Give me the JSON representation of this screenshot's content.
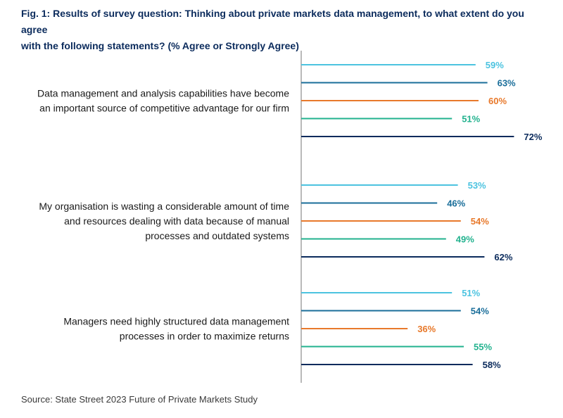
{
  "title_lines": [
    "Fig. 1: Results of survey question: Thinking about private markets data management, to what extent do you agree",
    "with the following statements? (% Agree or Strongly Agree)"
  ],
  "source": "Source: State Street 2023 Future of Private Markets Study",
  "colors": [
    "#4cc3e0",
    "#1a6e9a",
    "#e8792b",
    "#22b28e",
    "#0b2b5c"
  ],
  "chart_data": {
    "type": "bar",
    "orientation": "horizontal",
    "title": "Fig. 1: Results of survey question: Thinking about private markets data management, to what extent do you agree with the following statements? (% Agree or Strongly Agree)",
    "unit": "%",
    "xlim": [
      0,
      100
    ],
    "grid": false,
    "legend": "none",
    "categories": [
      {
        "label_lines": [
          "Data management and analysis capabilities have become",
          "an important source of competitive advantage for our firm"
        ],
        "values": [
          59,
          63,
          60,
          51,
          72
        ]
      },
      {
        "label_lines": [
          "My organisation is wasting a considerable amount of time",
          "and resources dealing with data because of manual",
          "processes and outdated systems"
        ],
        "values": [
          53,
          46,
          54,
          49,
          62
        ]
      },
      {
        "label_lines": [
          "Managers need highly structured data management",
          "processes in order to maximize returns"
        ],
        "values": [
          51,
          54,
          36,
          55,
          58
        ]
      }
    ]
  }
}
